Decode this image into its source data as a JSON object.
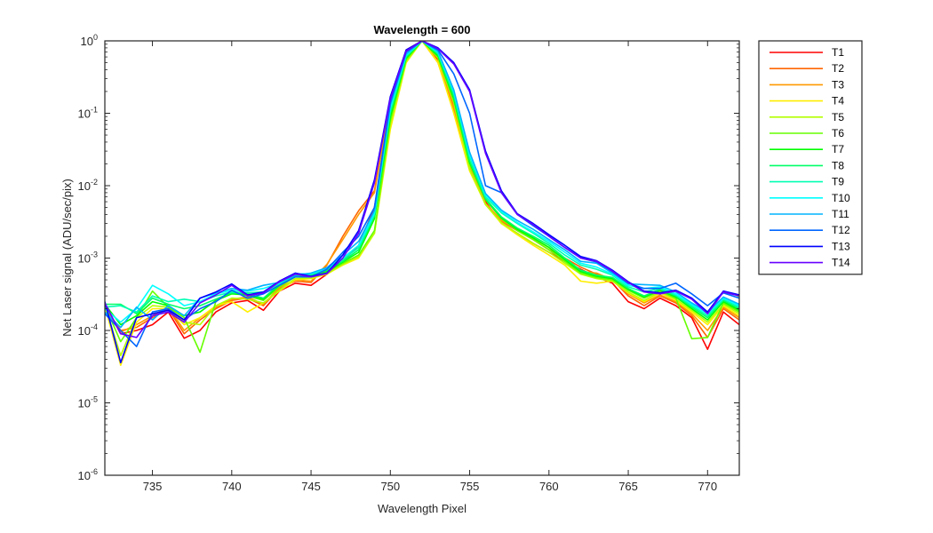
{
  "chart_data": {
    "type": "line",
    "title": "Wavelength = 600",
    "xlabel": "Wavelength Pixel",
    "ylabel": "Net Laser signal  (ADU/sec/pix)",
    "yscale": "log",
    "xlim": [
      732,
      772
    ],
    "ylim": [
      1e-06,
      1
    ],
    "xticks": [
      735,
      740,
      745,
      750,
      755,
      760,
      765,
      770
    ],
    "xtick_labels": [
      "735",
      "740",
      "745",
      "750",
      "755",
      "760",
      "765",
      "770"
    ],
    "yticks": [
      {
        "value": 1e-06,
        "base": "10",
        "exp": "-6"
      },
      {
        "value": 1e-05,
        "base": "10",
        "exp": "-5"
      },
      {
        "value": 0.0001,
        "base": "10",
        "exp": "-4"
      },
      {
        "value": 0.001,
        "base": "10",
        "exp": "-3"
      },
      {
        "value": 0.01,
        "base": "10",
        "exp": "-2"
      },
      {
        "value": 0.1,
        "base": "10",
        "exp": "-1"
      },
      {
        "value": 1,
        "base": "10",
        "exp": "0"
      }
    ],
    "grid": false,
    "legend_position": "outside-right",
    "x": [
      732,
      733,
      734,
      735,
      736,
      737,
      738,
      739,
      740,
      741,
      742,
      743,
      744,
      745,
      746,
      747,
      748,
      749,
      750,
      751,
      752,
      753,
      754,
      755,
      756,
      757,
      758,
      759,
      760,
      761,
      762,
      763,
      764,
      765,
      766,
      767,
      768,
      769,
      770,
      771,
      772
    ],
    "series": [
      {
        "name": "T1",
        "color": "#ff0000",
        "values": [
          0.00023,
          9e-05,
          0.0001,
          0.00012,
          0.00018,
          7.8e-05,
          0.0001,
          0.00018,
          0.00024,
          0.00026,
          0.00019,
          0.00035,
          0.00045,
          0.00042,
          0.0006,
          0.0009,
          0.0015,
          0.005,
          0.1,
          0.65,
          1.0,
          0.55,
          0.13,
          0.02,
          0.006,
          0.003,
          0.0022,
          0.0016,
          0.0012,
          0.0009,
          0.0007,
          0.00055,
          0.00045,
          0.00025,
          0.0002,
          0.00028,
          0.00022,
          0.00015,
          5.5e-05,
          0.00018,
          0.00012
        ]
      },
      {
        "name": "T2",
        "color": "#ff6600",
        "values": [
          0.00021,
          0.0001,
          0.00011,
          0.00015,
          0.0002,
          9e-05,
          0.00014,
          0.0002,
          0.00026,
          0.00028,
          0.00022,
          0.00038,
          0.00048,
          0.00046,
          0.0008,
          0.002,
          0.0045,
          0.0085,
          0.15,
          0.75,
          1.0,
          0.5,
          0.11,
          0.018,
          0.0055,
          0.0032,
          0.0024,
          0.0018,
          0.0013,
          0.001,
          0.00075,
          0.0006,
          0.0005,
          0.0003,
          0.00022,
          0.0003,
          0.00024,
          0.00016,
          8e-05,
          0.0002,
          0.00014
        ]
      },
      {
        "name": "T3",
        "color": "#ff9900",
        "values": [
          0.0002,
          9.5e-05,
          0.00012,
          0.00016,
          0.00021,
          0.0001,
          0.00015,
          0.00021,
          0.00027,
          0.00029,
          0.00023,
          0.00039,
          0.0005,
          0.00048,
          0.00082,
          0.0018,
          0.004,
          0.008,
          0.14,
          0.72,
          1.0,
          0.52,
          0.12,
          0.019,
          0.0057,
          0.0033,
          0.0025,
          0.0019,
          0.0014,
          0.00095,
          0.00065,
          0.00062,
          0.0005,
          0.00032,
          0.00024,
          0.00031,
          0.00025,
          0.00017,
          0.0001,
          0.00021,
          0.00015
        ]
      },
      {
        "name": "T4",
        "color": "#ffee00",
        "values": [
          0.00022,
          3.3e-05,
          0.00013,
          0.0002,
          0.0002,
          0.00012,
          0.00015,
          0.00022,
          0.00025,
          0.00018,
          0.00024,
          0.00035,
          0.0005,
          0.00052,
          0.0006,
          0.0008,
          0.001,
          0.0022,
          0.06,
          0.5,
          1.0,
          0.5,
          0.1,
          0.016,
          0.0055,
          0.003,
          0.0021,
          0.0015,
          0.0011,
          0.0008,
          0.00048,
          0.00045,
          0.00048,
          0.00033,
          0.00025,
          0.00033,
          0.00026,
          0.00018,
          0.00012,
          0.00022,
          0.00016
        ]
      },
      {
        "name": "T5",
        "color": "#b3ff00",
        "values": [
          0.00022,
          4.5e-05,
          0.00015,
          0.00022,
          0.00021,
          0.00013,
          0.00012,
          0.00022,
          0.00028,
          0.00027,
          0.00024,
          0.00036,
          0.00052,
          0.00053,
          0.00061,
          0.00082,
          0.00105,
          0.0022,
          0.07,
          0.52,
          1.0,
          0.58,
          0.14,
          0.017,
          0.0055,
          0.0031,
          0.0022,
          0.0016,
          0.0012,
          0.00085,
          0.0006,
          0.00052,
          0.00048,
          0.00034,
          0.00026,
          0.00034,
          0.00027,
          0.00019,
          0.00013,
          0.00023,
          0.00017
        ]
      },
      {
        "name": "T6",
        "color": "#66ff00",
        "values": [
          0.00022,
          7e-05,
          0.00015,
          0.00035,
          0.00021,
          0.00015,
          5e-05,
          0.00025,
          0.00035,
          0.0003,
          0.00026,
          0.0004,
          0.00055,
          0.00056,
          0.00064,
          0.00085,
          0.0011,
          0.0024,
          0.08,
          0.55,
          1.0,
          0.6,
          0.15,
          0.02,
          0.0064,
          0.0035,
          0.0024,
          0.0018,
          0.0013,
          0.0009,
          0.00062,
          0.00054,
          0.0005,
          0.00036,
          0.00028,
          0.00035,
          0.00028,
          7.7e-05,
          8e-05,
          0.00024,
          0.00018
        ]
      },
      {
        "name": "T7",
        "color": "#00ff00",
        "values": [
          0.00023,
          0.00012,
          0.00016,
          0.00025,
          0.00022,
          0.00016,
          0.00018,
          0.00026,
          0.00032,
          0.00031,
          0.00027,
          0.00042,
          0.00056,
          0.00057,
          0.00066,
          0.00088,
          0.0012,
          0.0035,
          0.09,
          0.58,
          1.0,
          0.62,
          0.16,
          0.021,
          0.0065,
          0.0036,
          0.0025,
          0.0019,
          0.0014,
          0.00095,
          0.00065,
          0.00056,
          0.00052,
          0.00037,
          0.00029,
          0.00036,
          0.00029,
          0.0002,
          0.00014,
          0.00025,
          0.00019
        ]
      },
      {
        "name": "T8",
        "color": "#00ff66",
        "values": [
          0.00023,
          0.00023,
          0.00017,
          0.00028,
          0.00023,
          0.0002,
          0.00022,
          0.00027,
          0.00033,
          0.00032,
          0.00028,
          0.00043,
          0.00057,
          0.00058,
          0.00068,
          0.0009,
          0.0013,
          0.0038,
          0.1,
          0.6,
          1.0,
          0.65,
          0.17,
          0.022,
          0.0066,
          0.0037,
          0.0026,
          0.002,
          0.0015,
          0.001,
          0.00068,
          0.00058,
          0.00054,
          0.00038,
          0.0003,
          0.00037,
          0.0003,
          0.00021,
          0.00015,
          0.00026,
          0.0002
        ]
      },
      {
        "name": "T9",
        "color": "#00ffb3",
        "values": [
          0.00021,
          0.00022,
          0.00018,
          0.0003,
          0.00025,
          0.00027,
          0.00025,
          0.0003,
          0.00034,
          0.00033,
          0.00034,
          0.00044,
          0.00058,
          0.0006,
          0.0007,
          0.00095,
          0.0014,
          0.004,
          0.11,
          0.62,
          1.0,
          0.68,
          0.19,
          0.025,
          0.007,
          0.0042,
          0.003,
          0.0022,
          0.0016,
          0.0011,
          0.0008,
          0.0007,
          0.00058,
          0.0004,
          0.00034,
          0.00038,
          0.00031,
          0.00022,
          0.00016,
          0.00027,
          0.00021
        ]
      },
      {
        "name": "T10",
        "color": "#00ffff",
        "values": [
          0.0002,
          0.00013,
          0.0002,
          0.00042,
          0.00032,
          0.00022,
          0.00025,
          0.00032,
          0.00036,
          0.00035,
          0.00038,
          0.00045,
          0.0006,
          0.00061,
          0.00072,
          0.001,
          0.0015,
          0.0042,
          0.12,
          0.64,
          1.0,
          0.7,
          0.2,
          0.027,
          0.0075,
          0.0044,
          0.0031,
          0.0023,
          0.0017,
          0.0012,
          0.00085,
          0.00075,
          0.0006,
          0.00042,
          0.00038,
          0.0004,
          0.00032,
          0.00023,
          0.00017,
          0.00028,
          0.00022
        ]
      },
      {
        "name": "T11",
        "color": "#00b3ff",
        "values": [
          0.00018,
          0.00011,
          0.00021,
          0.00014,
          0.00022,
          0.00016,
          0.00028,
          0.00033,
          0.00038,
          0.00036,
          0.00042,
          0.00046,
          0.00058,
          0.00062,
          0.00074,
          0.0011,
          0.0017,
          0.0045,
          0.13,
          0.66,
          1.0,
          0.72,
          0.21,
          0.029,
          0.0078,
          0.0046,
          0.0033,
          0.0025,
          0.0018,
          0.0013,
          0.0009,
          0.00085,
          0.00062,
          0.00044,
          0.00043,
          0.00042,
          0.00034,
          0.00024,
          0.00018,
          0.00029,
          0.00023
        ]
      },
      {
        "name": "T12",
        "color": "#0066ff",
        "values": [
          0.00017,
          0.0001,
          6e-05,
          0.00018,
          0.0002,
          0.00014,
          0.0002,
          0.00025,
          0.00036,
          0.00028,
          0.00032,
          0.00042,
          0.00055,
          0.00055,
          0.0007,
          0.0012,
          0.002,
          0.005,
          0.14,
          0.7,
          1.0,
          0.75,
          0.35,
          0.1,
          0.01,
          0.008,
          0.004,
          0.0028,
          0.002,
          0.0014,
          0.001,
          0.00088,
          0.00065,
          0.00045,
          0.00038,
          0.00038,
          0.00045,
          0.00032,
          0.00022,
          0.00033,
          0.00028
        ]
      },
      {
        "name": "T13",
        "color": "#0000ff",
        "values": [
          0.00025,
          3.6e-05,
          0.00015,
          0.00017,
          0.00019,
          0.00014,
          0.00028,
          0.00034,
          0.00044,
          0.00031,
          0.00034,
          0.00048,
          0.00062,
          0.00056,
          0.00062,
          0.0011,
          0.0024,
          0.012,
          0.17,
          0.75,
          1.0,
          0.8,
          0.5,
          0.21,
          0.03,
          0.0085,
          0.0041,
          0.003,
          0.0021,
          0.0015,
          0.00105,
          0.00092,
          0.00068,
          0.00047,
          0.00035,
          0.00033,
          0.00036,
          0.00028,
          0.00018,
          0.00035,
          0.00031
        ]
      },
      {
        "name": "T14",
        "color": "#6600ff",
        "values": [
          0.00024,
          9e-05,
          8e-05,
          0.00016,
          0.00018,
          0.00013,
          0.00024,
          0.00031,
          0.00042,
          0.0003,
          0.00033,
          0.00047,
          0.0006,
          0.00055,
          0.00061,
          0.001,
          0.0022,
          0.011,
          0.16,
          0.72,
          1.0,
          0.78,
          0.48,
          0.2,
          0.028,
          0.008,
          0.004,
          0.0029,
          0.002,
          0.0014,
          0.001,
          0.0009,
          0.00066,
          0.00046,
          0.00034,
          0.00032,
          0.00035,
          0.00027,
          0.00017,
          0.00034,
          0.0003
        ]
      }
    ]
  }
}
